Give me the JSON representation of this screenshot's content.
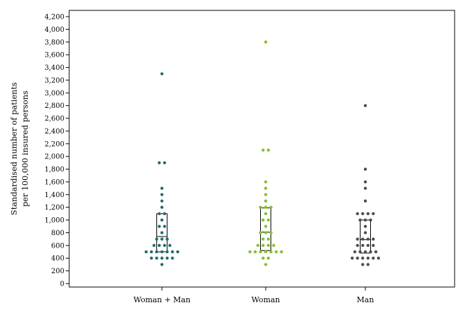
{
  "chart_data": {
    "type": "scatter",
    "subtype": "dot-plot-with-boxes",
    "title": "",
    "xlabel": "",
    "ylabel_lines": [
      "Standardised number of patients",
      "per 100,000 insured persons"
    ],
    "ylim": [
      0,
      4200
    ],
    "yticks": [
      0,
      200,
      400,
      600,
      800,
      1000,
      1200,
      1400,
      1600,
      1800,
      2000,
      2200,
      2400,
      2600,
      2800,
      3000,
      3200,
      3400,
      3600,
      3800,
      4000,
      4200
    ],
    "ytick_labels": [
      "0",
      "200",
      "400",
      "600",
      "800",
      "1,000",
      "1,200",
      "1,400",
      "1,600",
      "1,800",
      "2,000",
      "2,200",
      "2,400",
      "2,600",
      "2,800",
      "3,000",
      "3,200",
      "3,400",
      "3,600",
      "3,800",
      "4,000",
      "4,200"
    ],
    "grid": false,
    "legend": "none",
    "categories": [
      "Woman + Man",
      "Woman",
      "Man"
    ],
    "series": [
      {
        "color": "#1f6b70",
        "box": {
          "q1": 500,
          "median": 740,
          "q3": 1100
        },
        "points": [
          {
            "y": 3300,
            "n": 1
          },
          {
            "y": 1900,
            "n": 2
          },
          {
            "y": 1500,
            "n": 1
          },
          {
            "y": 1400,
            "n": 1
          },
          {
            "y": 1300,
            "n": 1
          },
          {
            "y": 1200,
            "n": 1
          },
          {
            "y": 1100,
            "n": 2
          },
          {
            "y": 1000,
            "n": 1
          },
          {
            "y": 900,
            "n": 2
          },
          {
            "y": 800,
            "n": 1
          },
          {
            "y": 700,
            "n": 3
          },
          {
            "y": 600,
            "n": 4
          },
          {
            "y": 500,
            "n": 7
          },
          {
            "y": 400,
            "n": 5
          },
          {
            "y": 300,
            "n": 1
          }
        ]
      },
      {
        "color": "#84c226",
        "box": {
          "q1": 520,
          "median": 810,
          "q3": 1190
        },
        "points": [
          {
            "y": 3800,
            "n": 1
          },
          {
            "y": 2100,
            "n": 2
          },
          {
            "y": 1600,
            "n": 1
          },
          {
            "y": 1500,
            "n": 1
          },
          {
            "y": 1400,
            "n": 1
          },
          {
            "y": 1300,
            "n": 1
          },
          {
            "y": 1200,
            "n": 3
          },
          {
            "y": 1100,
            "n": 1
          },
          {
            "y": 1000,
            "n": 2
          },
          {
            "y": 900,
            "n": 1
          },
          {
            "y": 800,
            "n": 3
          },
          {
            "y": 700,
            "n": 2
          },
          {
            "y": 600,
            "n": 4
          },
          {
            "y": 500,
            "n": 7
          },
          {
            "y": 400,
            "n": 2
          },
          {
            "y": 300,
            "n": 1
          }
        ]
      },
      {
        "color": "#4d4d4d",
        "box": {
          "q1": 480,
          "median": 690,
          "q3": 1000
        },
        "points": [
          {
            "y": 2800,
            "n": 1
          },
          {
            "y": 1800,
            "n": 1
          },
          {
            "y": 1600,
            "n": 1
          },
          {
            "y": 1500,
            "n": 1
          },
          {
            "y": 1300,
            "n": 1
          },
          {
            "y": 1100,
            "n": 4
          },
          {
            "y": 1000,
            "n": 3
          },
          {
            "y": 900,
            "n": 1
          },
          {
            "y": 800,
            "n": 1
          },
          {
            "y": 700,
            "n": 4
          },
          {
            "y": 600,
            "n": 4
          },
          {
            "y": 500,
            "n": 5
          },
          {
            "y": 400,
            "n": 6
          },
          {
            "y": 300,
            "n": 2
          }
        ]
      }
    ]
  }
}
